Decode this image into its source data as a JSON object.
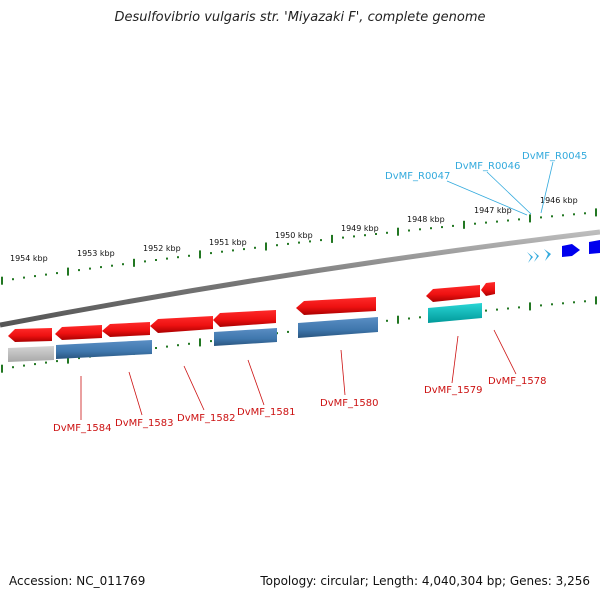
{
  "title": "Desulfovibrio vulgaris str. 'Miyazaki F', complete genome",
  "footer": {
    "accession_label": "Accession: ",
    "accession": "NC_011769",
    "topology_label": "Topology: ",
    "topology": "circular",
    "length_label": "Length: ",
    "length": "4,040,304 bp",
    "genes_label": "Genes: ",
    "genes": "3,256"
  },
  "ruler": {
    "unit": "kbp",
    "ticks": [
      {
        "label": "1954 kbp",
        "kbp": 1954
      },
      {
        "label": "1953 kbp",
        "kbp": 1953
      },
      {
        "label": "1952 kbp",
        "kbp": 1952
      },
      {
        "label": "1951 kbp",
        "kbp": 1951
      },
      {
        "label": "1950 kbp",
        "kbp": 1950
      },
      {
        "label": "1949 kbp",
        "kbp": 1949
      },
      {
        "label": "1948 kbp",
        "kbp": 1948
      },
      {
        "label": "1947 kbp",
        "kbp": 1947
      },
      {
        "label": "1946 kbp",
        "kbp": 1946
      }
    ]
  },
  "colors": {
    "gene": "#ee1111",
    "cds": "#3f77ad",
    "cds_partial": "#bbbbbb",
    "rna_gene": "#22bbdd",
    "rna_cds": "#00cccc",
    "trna": "#33aadd",
    "right_gene": "#0000ee",
    "label_gene": "#cc1111",
    "label_rna": "#33aadd",
    "tick": "#227722",
    "backbone": "#888888"
  },
  "gene_labels": [
    {
      "text": "DvMF_1584"
    },
    {
      "text": "DvMF_1583"
    },
    {
      "text": "DvMF_1582"
    },
    {
      "text": "DvMF_1581"
    },
    {
      "text": "DvMF_1580"
    },
    {
      "text": "DvMF_1579"
    },
    {
      "text": "DvMF_1578"
    }
  ],
  "rna_labels": [
    {
      "text": "DvMF_R0047"
    },
    {
      "text": "DvMF_R0046"
    },
    {
      "text": "DvMF_R0045"
    }
  ]
}
